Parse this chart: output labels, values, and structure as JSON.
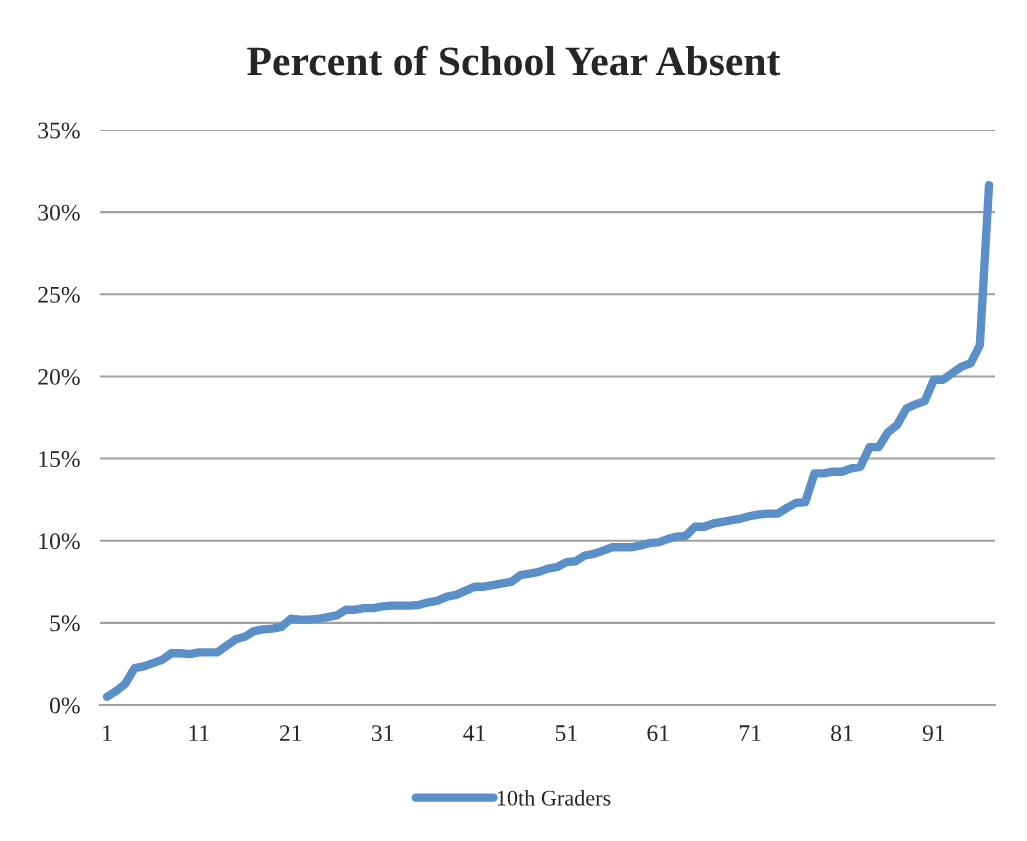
{
  "chart_data": {
    "type": "line",
    "title": "Percent of School Year Absent",
    "categories": [
      "1",
      null,
      null,
      null,
      null,
      null,
      null,
      null,
      null,
      null,
      "11",
      null,
      null,
      null,
      null,
      null,
      null,
      null,
      null,
      null,
      "21",
      null,
      null,
      null,
      null,
      null,
      null,
      null,
      null,
      null,
      "31",
      null,
      null,
      null,
      null,
      null,
      null,
      null,
      null,
      null,
      "41",
      null,
      null,
      null,
      null,
      null,
      null,
      null,
      null,
      null,
      "51",
      null,
      null,
      null,
      null,
      null,
      null,
      null,
      null,
      null,
      "61",
      null,
      null,
      null,
      null,
      null,
      null,
      null,
      null,
      null,
      "71",
      null,
      null,
      null,
      null,
      null,
      null,
      null,
      null,
      null,
      "81",
      null,
      null,
      null,
      null,
      null,
      null,
      null,
      null,
      null,
      "91",
      null,
      null,
      null,
      null,
      null,
      null
    ],
    "series": [
      {
        "name": "10th Graders",
        "color": "#5b8fc8",
        "values": [
          0.5,
          0.85,
          1.3,
          2.25,
          2.35,
          2.55,
          2.75,
          3.15,
          3.15,
          3.1,
          3.2,
          3.2,
          3.2,
          3.6,
          4.0,
          4.15,
          4.5,
          4.6,
          4.65,
          4.75,
          5.25,
          5.2,
          5.2,
          5.25,
          5.35,
          5.45,
          5.8,
          5.8,
          5.9,
          5.9,
          6.0,
          6.05,
          6.05,
          6.05,
          6.1,
          6.25,
          6.35,
          6.6,
          6.7,
          6.95,
          7.2,
          7.2,
          7.3,
          7.4,
          7.5,
          7.9,
          8.0,
          8.1,
          8.3,
          8.4,
          8.7,
          8.75,
          9.1,
          9.2,
          9.4,
          9.6,
          9.6,
          9.6,
          9.7,
          9.85,
          9.9,
          10.1,
          10.25,
          10.3,
          10.85,
          10.85,
          11.05,
          11.15,
          11.25,
          11.35,
          11.5,
          11.6,
          11.65,
          11.65,
          12.0,
          12.3,
          12.35,
          14.1,
          14.1,
          14.2,
          14.2,
          14.4,
          14.5,
          15.7,
          15.7,
          16.6,
          17.05,
          18.05,
          18.3,
          18.5,
          19.8,
          19.8,
          20.2,
          20.6,
          20.8,
          21.9,
          31.65
        ]
      }
    ],
    "ylim": [
      0,
      35
    ],
    "yticks": [
      {
        "value": 0,
        "label": "0%"
      },
      {
        "value": 5,
        "label": "5%"
      },
      {
        "value": 10,
        "label": "10%"
      },
      {
        "value": 15,
        "label": "15%"
      },
      {
        "value": 20,
        "label": "20%"
      },
      {
        "value": 25,
        "label": "25%"
      },
      {
        "value": 30,
        "label": "30%"
      },
      {
        "value": 35,
        "label": "35%"
      }
    ],
    "grid": "y",
    "legend": "bottom",
    "marker": "none",
    "line_style": "solid"
  }
}
